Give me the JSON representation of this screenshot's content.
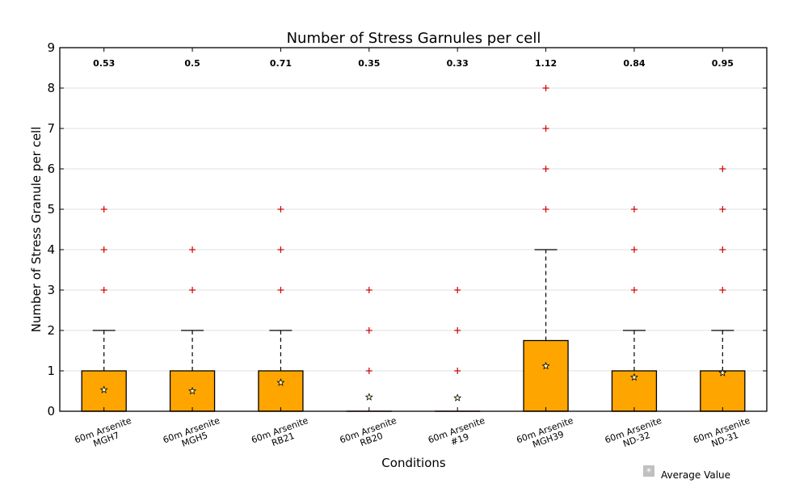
{
  "chart_data": {
    "type": "box",
    "title": "Number of Stress Garnules per cell",
    "xlabel": "Conditions",
    "ylabel": "Number of Stress Granule per cell",
    "ylim": [
      0,
      9
    ],
    "yticks": [
      0,
      1,
      2,
      3,
      4,
      5,
      6,
      7,
      8,
      9
    ],
    "grid": "horizontal",
    "legend": {
      "position": "bottom-right",
      "label": "Average Value"
    },
    "colors": {
      "box_fill": "#ffa500",
      "outlier": "#cc0000",
      "mean_marker": "#ffffcc",
      "grid": "#e0e0e0"
    },
    "categories": [
      [
        "60m Arsenite",
        "MGH7"
      ],
      [
        "60m Arsenite",
        "MGH5"
      ],
      [
        "60m Arsenite",
        "RB21"
      ],
      [
        "60m Arsenite",
        "RB20"
      ],
      [
        "60m Arsenite",
        "#19"
      ],
      [
        "60m Arsenite",
        "MGH39"
      ],
      [
        "60m Arsenite",
        "ND-32"
      ],
      [
        "60m Arsenite",
        "ND-31"
      ]
    ],
    "mean_labels": [
      "0.53",
      "0.5",
      "0.71",
      "0.35",
      "0.33",
      "1.12",
      "0.84",
      "0.95"
    ],
    "boxes": [
      {
        "q1": 0,
        "median": 0,
        "q3": 1,
        "whisker_low": 0,
        "whisker_high": 2,
        "mean": 0.53,
        "outliers": [
          3,
          4,
          5
        ]
      },
      {
        "q1": 0,
        "median": 0,
        "q3": 1,
        "whisker_low": 0,
        "whisker_high": 2,
        "mean": 0.5,
        "outliers": [
          3,
          4
        ]
      },
      {
        "q1": 0,
        "median": 0,
        "q3": 1,
        "whisker_low": 0,
        "whisker_high": 2,
        "mean": 0.71,
        "outliers": [
          3,
          4,
          5
        ]
      },
      {
        "q1": 0,
        "median": 0,
        "q3": 0,
        "whisker_low": 0,
        "whisker_high": 0,
        "mean": 0.35,
        "outliers": [
          1,
          2,
          3
        ]
      },
      {
        "q1": 0,
        "median": 0,
        "q3": 0,
        "whisker_low": 0,
        "whisker_high": 0,
        "mean": 0.33,
        "outliers": [
          1,
          2,
          3
        ]
      },
      {
        "q1": 0,
        "median": 0,
        "q3": 1.75,
        "whisker_low": 0,
        "whisker_high": 4,
        "mean": 1.12,
        "outliers": [
          5,
          6,
          7,
          8
        ]
      },
      {
        "q1": 0,
        "median": 0,
        "q3": 1,
        "whisker_low": 0,
        "whisker_high": 2,
        "mean": 0.84,
        "outliers": [
          3,
          4,
          5
        ]
      },
      {
        "q1": 0,
        "median": 0,
        "q3": 1,
        "whisker_low": 0,
        "whisker_high": 2,
        "mean": 0.95,
        "outliers": [
          3,
          4,
          5,
          6
        ]
      }
    ]
  }
}
